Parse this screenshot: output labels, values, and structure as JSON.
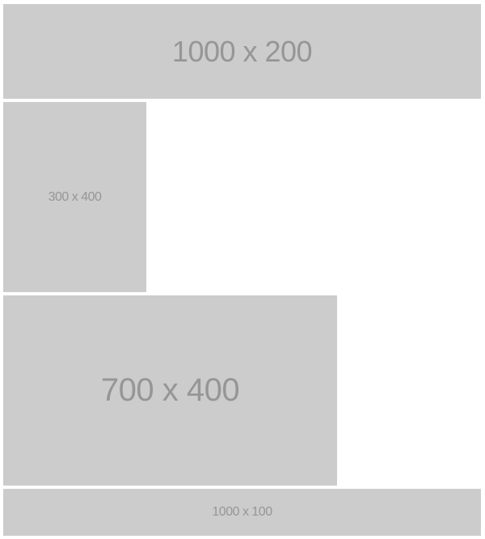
{
  "placeholders": {
    "top": {
      "label": "1000 x 200"
    },
    "small": {
      "label": "300 x 400"
    },
    "mid": {
      "label": "700 x 400"
    },
    "bottom": {
      "label": "1000 x 100"
    }
  },
  "colors": {
    "placeholder_bg": "#cccccc",
    "placeholder_text": "#969696",
    "page_bg": "#ffffff"
  }
}
